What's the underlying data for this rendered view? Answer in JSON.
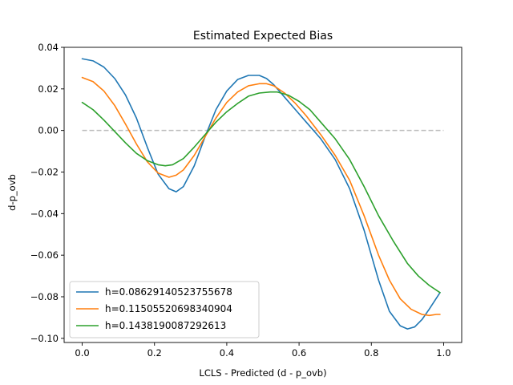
{
  "chart_data": {
    "type": "line",
    "title": "Estimated Expected Bias",
    "xlabel": "LCLS - Predicted (d - p_ovb)",
    "ylabel": "d-p_ovb",
    "xlim": [
      -0.05,
      1.05
    ],
    "ylim": [
      -0.102,
      0.04
    ],
    "xticks": [
      0.0,
      0.2,
      0.4,
      0.6,
      0.8,
      1.0
    ],
    "xtick_labels": [
      "0.0",
      "0.2",
      "0.4",
      "0.6",
      "0.8",
      "1.0"
    ],
    "yticks": [
      -0.1,
      -0.08,
      -0.06,
      -0.04,
      -0.02,
      0.0,
      0.02,
      0.04
    ],
    "ytick_labels": [
      "−0.10",
      "−0.08",
      "−0.06",
      "−0.04",
      "−0.02",
      "0.00",
      "0.02",
      "0.04"
    ],
    "grid": false,
    "legend_position": "lower-left",
    "reference_line": {
      "y": 0.0,
      "x_range": [
        0.0,
        1.0
      ],
      "color": "#bdbdbd",
      "style": "dashed"
    },
    "series": [
      {
        "name": "h=0.08629140523755678",
        "color": "#1f77b4",
        "x": [
          0.0,
          0.03,
          0.06,
          0.09,
          0.12,
          0.15,
          0.18,
          0.21,
          0.24,
          0.26,
          0.28,
          0.31,
          0.34,
          0.37,
          0.4,
          0.43,
          0.46,
          0.49,
          0.51,
          0.53,
          0.56,
          0.59,
          0.62,
          0.66,
          0.7,
          0.74,
          0.78,
          0.82,
          0.85,
          0.88,
          0.9,
          0.92,
          0.94,
          0.96,
          0.99
        ],
        "y": [
          0.0345,
          0.0335,
          0.0305,
          0.025,
          0.017,
          0.006,
          -0.008,
          -0.021,
          -0.028,
          -0.0295,
          -0.027,
          -0.017,
          -0.003,
          0.01,
          0.019,
          0.0245,
          0.0265,
          0.0265,
          0.025,
          0.022,
          0.016,
          0.01,
          0.004,
          -0.004,
          -0.014,
          -0.028,
          -0.048,
          -0.072,
          -0.087,
          -0.094,
          -0.0955,
          -0.0945,
          -0.091,
          -0.086,
          -0.078
        ]
      },
      {
        "name": "h=0.11505520698340904",
        "color": "#ff7f0e",
        "x": [
          0.0,
          0.03,
          0.06,
          0.09,
          0.12,
          0.15,
          0.18,
          0.21,
          0.24,
          0.26,
          0.28,
          0.31,
          0.34,
          0.37,
          0.4,
          0.43,
          0.46,
          0.49,
          0.51,
          0.53,
          0.56,
          0.59,
          0.62,
          0.66,
          0.7,
          0.74,
          0.78,
          0.82,
          0.85,
          0.88,
          0.91,
          0.94,
          0.96,
          0.98,
          0.99
        ],
        "y": [
          0.0255,
          0.0235,
          0.019,
          0.012,
          0.003,
          -0.0065,
          -0.015,
          -0.0205,
          -0.0225,
          -0.0215,
          -0.019,
          -0.012,
          -0.003,
          0.006,
          0.0135,
          0.0185,
          0.0215,
          0.0225,
          0.0225,
          0.0215,
          0.018,
          0.013,
          0.007,
          -0.002,
          -0.012,
          -0.024,
          -0.041,
          -0.06,
          -0.072,
          -0.081,
          -0.086,
          -0.0885,
          -0.089,
          -0.0885,
          -0.0885
        ]
      },
      {
        "name": "h=0.1438190087292613",
        "color": "#2ca02c",
        "x": [
          0.0,
          0.03,
          0.06,
          0.09,
          0.12,
          0.15,
          0.18,
          0.21,
          0.23,
          0.25,
          0.28,
          0.31,
          0.34,
          0.37,
          0.4,
          0.43,
          0.46,
          0.49,
          0.52,
          0.54,
          0.57,
          0.6,
          0.63,
          0.66,
          0.7,
          0.74,
          0.78,
          0.82,
          0.86,
          0.9,
          0.93,
          0.96,
          0.99
        ],
        "y": [
          0.0135,
          0.01,
          0.005,
          -0.0005,
          -0.006,
          -0.011,
          -0.0145,
          -0.0165,
          -0.017,
          -0.0165,
          -0.0135,
          -0.008,
          -0.002,
          0.004,
          0.009,
          0.013,
          0.0165,
          0.018,
          0.0185,
          0.0185,
          0.017,
          0.014,
          0.01,
          0.004,
          -0.004,
          -0.014,
          -0.027,
          -0.041,
          -0.053,
          -0.064,
          -0.07,
          -0.0745,
          -0.078
        ]
      }
    ]
  }
}
